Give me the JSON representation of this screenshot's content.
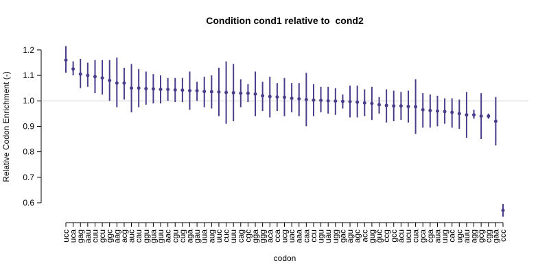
{
  "chart_data": {
    "type": "errorbar",
    "title": "Condition cond1 relative to  cond2",
    "x_label": "codon",
    "y_label": "Relative Codon Enrichment (-)",
    "categories": [
      "ucc",
      "uca",
      "gag",
      "aau",
      "cuu",
      "gcu",
      "ggc",
      "aag",
      "acg",
      "auc",
      "cau",
      "ggu",
      "gua",
      "guu",
      "aac",
      "cgu",
      "cug",
      "aga",
      "gau",
      "uua",
      "aug",
      "uuc",
      "cuc",
      "uuu",
      "cag",
      "cgc",
      "gga",
      "ggg",
      "aca",
      "cca",
      "ucg",
      "uac",
      "aaa",
      "caa",
      "ccu",
      "ugu",
      "uau",
      "ugg",
      "gac",
      "agu",
      "agc",
      "acc",
      "gug",
      "guc",
      "ccg",
      "gcc",
      "acu",
      "ucu",
      "cua",
      "gca",
      "cga",
      "aua",
      "uug",
      "cac",
      "ugc",
      "auu",
      "agg",
      "gcg",
      "cgg",
      "gaa",
      "ccc"
    ],
    "series": [
      {
        "color": "#483d8b",
        "values": [
          1.16,
          1.125,
          1.105,
          1.1,
          1.095,
          1.09,
          1.08,
          1.07,
          1.07,
          1.05,
          1.05,
          1.048,
          1.047,
          1.045,
          1.045,
          1.043,
          1.042,
          1.04,
          1.04,
          1.037,
          1.036,
          1.035,
          1.033,
          1.032,
          1.03,
          1.03,
          1.027,
          1.02,
          1.017,
          1.015,
          1.014,
          1.01,
          1.008,
          1.005,
          1.003,
          1.002,
          1.0,
          0.999,
          0.998,
          0.997,
          0.995,
          0.992,
          0.99,
          0.985,
          0.982,
          0.98,
          0.98,
          0.978,
          0.977,
          0.965,
          0.962,
          0.96,
          0.958,
          0.955,
          0.95,
          0.945,
          0.945,
          0.94,
          0.94,
          0.92,
          0.57
        ],
        "lower": [
          1.11,
          1.1,
          1.05,
          1.055,
          1.03,
          1.025,
          1.0,
          0.975,
          1.005,
          0.955,
          0.975,
          0.985,
          0.99,
          0.99,
          1.0,
          0.995,
          0.995,
          0.965,
          1.0,
          0.975,
          0.97,
          0.94,
          0.91,
          0.92,
          0.975,
          0.995,
          0.94,
          0.96,
          0.935,
          0.96,
          0.94,
          0.955,
          0.94,
          0.9,
          0.94,
          0.955,
          0.95,
          0.945,
          0.97,
          0.935,
          0.935,
          0.94,
          0.925,
          0.95,
          0.915,
          0.92,
          0.925,
          0.915,
          0.87,
          0.895,
          0.895,
          0.9,
          0.91,
          0.895,
          0.89,
          0.855,
          0.93,
          0.85,
          0.93,
          0.825,
          0.545
        ],
        "upper": [
          1.215,
          1.155,
          1.165,
          1.15,
          1.16,
          1.16,
          1.16,
          1.17,
          1.13,
          1.145,
          1.125,
          1.115,
          1.105,
          1.1,
          1.09,
          1.09,
          1.09,
          1.115,
          1.075,
          1.095,
          1.1,
          1.13,
          1.155,
          1.145,
          1.085,
          1.065,
          1.115,
          1.075,
          1.095,
          1.07,
          1.09,
          1.07,
          1.07,
          1.11,
          1.065,
          1.055,
          1.055,
          1.05,
          1.025,
          1.06,
          1.06,
          1.045,
          1.055,
          1.015,
          1.045,
          1.04,
          1.035,
          1.04,
          1.085,
          1.03,
          1.025,
          1.02,
          1.01,
          1.01,
          1.005,
          1.035,
          0.965,
          1.03,
          0.95,
          1.015,
          0.595
        ]
      }
    ],
    "ylim": [
      0.54,
      1.24
    ],
    "yticks": [
      0.6,
      0.7,
      0.8,
      0.9,
      {
        "value": 1,
        "label": "1.0"
      },
      1.1,
      1.2
    ],
    "reference_line": 1
  }
}
